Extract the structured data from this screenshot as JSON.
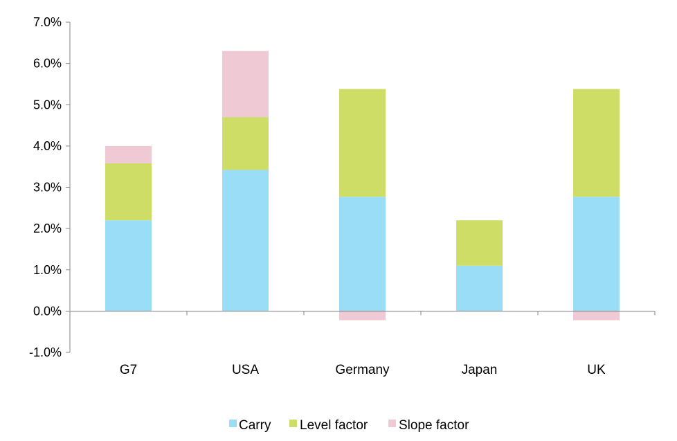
{
  "chart_data": {
    "type": "bar",
    "stacked": true,
    "categories": [
      "G7",
      "USA",
      "Germany",
      "Japan",
      "UK"
    ],
    "series": [
      {
        "name": "Carry",
        "color": "#99ddf7",
        "values": [
          2.2,
          3.42,
          2.77,
          1.1,
          2.77
        ]
      },
      {
        "name": "Level factor",
        "color": "#cddd66",
        "values": [
          1.38,
          1.28,
          2.61,
          1.1,
          2.61
        ]
      },
      {
        "name": "Slope factor",
        "color": "#efc9d4",
        "values": [
          0.42,
          1.6,
          -0.22,
          0.0,
          -0.22
        ]
      }
    ],
    "ylim": [
      -1.0,
      7.0
    ],
    "yticks": [
      "-1.0%",
      "0.0%",
      "1.0%",
      "2.0%",
      "3.0%",
      "4.0%",
      "5.0%",
      "6.0%",
      "7.0%"
    ],
    "ytick_values": [
      -1,
      0,
      1,
      2,
      3,
      4,
      5,
      6,
      7
    ],
    "grid": false,
    "legend_position": "bottom",
    "title": "",
    "xlabel": "",
    "ylabel": ""
  }
}
